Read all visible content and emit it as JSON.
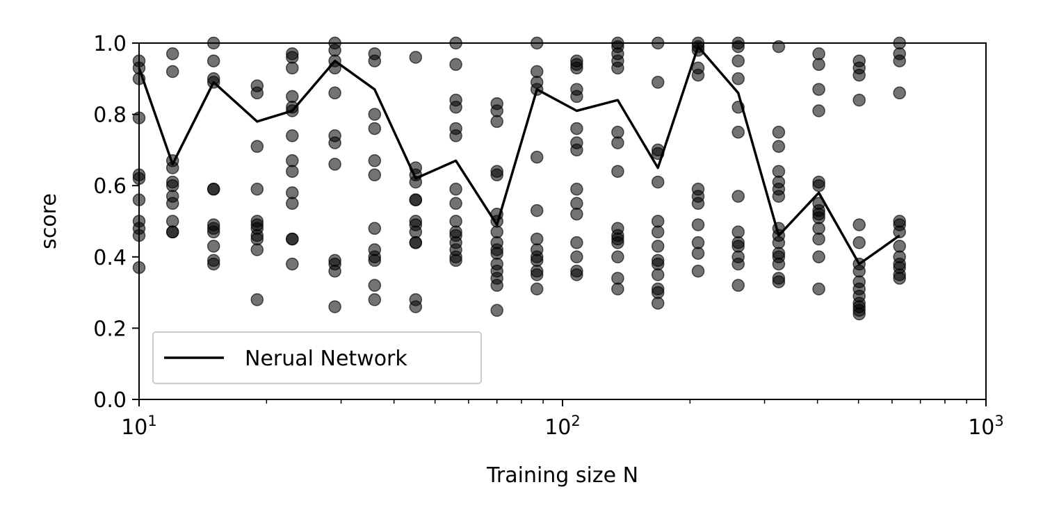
{
  "chart_data": {
    "type": "scatter",
    "xlabel": "Training size N",
    "ylabel": "score",
    "xscale": "log",
    "xlim": [
      10,
      1000
    ],
    "ylim": [
      0.0,
      1.0
    ],
    "x_tick_labels": [
      {
        "base": "10",
        "exp": "1",
        "value": 10
      },
      {
        "base": "10",
        "exp": "2",
        "value": 100
      },
      {
        "base": "10",
        "exp": "3",
        "value": 1000
      }
    ],
    "y_ticks": [
      "0.0",
      "0.2",
      "0.4",
      "0.6",
      "0.8",
      "1.0"
    ],
    "legend": {
      "position": "lower-left",
      "entries": [
        "Nerual Network"
      ]
    },
    "grid": false,
    "colors": {
      "line": "#000000",
      "points": "#000000",
      "point_alpha": 0.55
    },
    "x": [
      10,
      12,
      15,
      19,
      23,
      29,
      36,
      45,
      56,
      70,
      87,
      108,
      135,
      168,
      209,
      260,
      324,
      403,
      502,
      625
    ],
    "scatter_points": [
      [
        0.95,
        0.93,
        0.9,
        0.79,
        0.63,
        0.62,
        0.56,
        0.5,
        0.48,
        0.46,
        0.37
      ],
      [
        0.97,
        0.92,
        0.67,
        0.65,
        0.61,
        0.6,
        0.57,
        0.55,
        0.5,
        0.47,
        0.47
      ],
      [
        1.0,
        0.95,
        0.9,
        0.89,
        0.59,
        0.59,
        0.49,
        0.48,
        0.47,
        0.43,
        0.39,
        0.38
      ],
      [
        0.88,
        0.86,
        0.71,
        0.59,
        0.5,
        0.49,
        0.48,
        0.46,
        0.45,
        0.42,
        0.28
      ],
      [
        0.97,
        0.96,
        0.93,
        0.85,
        0.82,
        0.81,
        0.74,
        0.67,
        0.64,
        0.58,
        0.55,
        0.45,
        0.45,
        0.38
      ],
      [
        1.0,
        0.98,
        0.95,
        0.93,
        0.86,
        0.74,
        0.72,
        0.66,
        0.39,
        0.38,
        0.36,
        0.26
      ],
      [
        0.97,
        0.95,
        0.8,
        0.76,
        0.67,
        0.63,
        0.48,
        0.42,
        0.4,
        0.39,
        0.32,
        0.28
      ],
      [
        0.96,
        0.65,
        0.63,
        0.61,
        0.56,
        0.56,
        0.5,
        0.49,
        0.47,
        0.44,
        0.44,
        0.28,
        0.26
      ],
      [
        1.0,
        0.94,
        0.84,
        0.82,
        0.76,
        0.74,
        0.59,
        0.55,
        0.5,
        0.47,
        0.46,
        0.44,
        0.42,
        0.4,
        0.39
      ],
      [
        0.83,
        0.81,
        0.78,
        0.64,
        0.63,
        0.52,
        0.5,
        0.47,
        0.44,
        0.42,
        0.41,
        0.38,
        0.36,
        0.34,
        0.32,
        0.25
      ],
      [
        1.0,
        0.92,
        0.89,
        0.87,
        0.68,
        0.53,
        0.45,
        0.42,
        0.4,
        0.39,
        0.36,
        0.35,
        0.31
      ],
      [
        0.95,
        0.94,
        0.93,
        0.87,
        0.85,
        0.76,
        0.72,
        0.7,
        0.59,
        0.55,
        0.52,
        0.44,
        0.4,
        0.36,
        0.35
      ],
      [
        1.0,
        0.99,
        0.97,
        0.95,
        0.93,
        0.75,
        0.72,
        0.64,
        0.48,
        0.46,
        0.45,
        0.44,
        0.4,
        0.34,
        0.31
      ],
      [
        1.0,
        0.89,
        0.7,
        0.69,
        0.61,
        0.5,
        0.47,
        0.43,
        0.39,
        0.38,
        0.35,
        0.31,
        0.3,
        0.27
      ],
      [
        1.0,
        0.99,
        0.98,
        0.93,
        0.91,
        0.59,
        0.57,
        0.55,
        0.49,
        0.44,
        0.41,
        0.36
      ],
      [
        1.0,
        0.99,
        0.95,
        0.9,
        0.82,
        0.75,
        0.57,
        0.47,
        0.44,
        0.43,
        0.4,
        0.38,
        0.32
      ],
      [
        0.99,
        0.75,
        0.71,
        0.64,
        0.61,
        0.59,
        0.57,
        0.48,
        0.46,
        0.44,
        0.41,
        0.4,
        0.38,
        0.34,
        0.33
      ],
      [
        0.97,
        0.94,
        0.87,
        0.81,
        0.61,
        0.6,
        0.55,
        0.53,
        0.52,
        0.51,
        0.48,
        0.45,
        0.4,
        0.31
      ],
      [
        0.95,
        0.93,
        0.91,
        0.84,
        0.49,
        0.44,
        0.38,
        0.36,
        0.33,
        0.31,
        0.29,
        0.27,
        0.26,
        0.25,
        0.24
      ],
      [
        1.0,
        0.97,
        0.95,
        0.86,
        0.5,
        0.49,
        0.47,
        0.43,
        0.4,
        0.38,
        0.37,
        0.35,
        0.34
      ]
    ],
    "series": [
      {
        "name": "Nerual Network",
        "type": "line",
        "values": [
          0.93,
          0.66,
          0.89,
          0.78,
          0.81,
          0.95,
          0.87,
          0.62,
          0.67,
          0.49,
          0.87,
          0.81,
          0.84,
          0.65,
          0.99,
          0.86,
          0.46,
          0.58,
          0.38,
          0.46
        ]
      }
    ]
  }
}
